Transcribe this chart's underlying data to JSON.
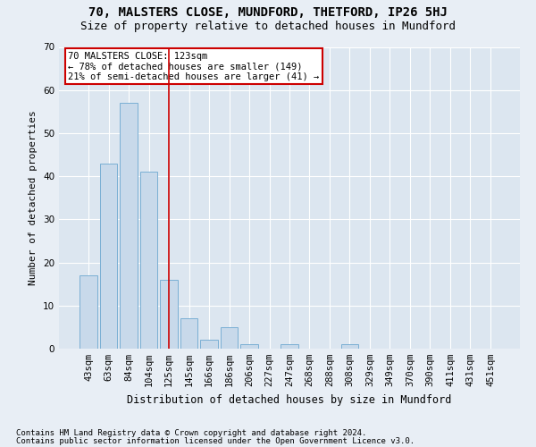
{
  "title1": "70, MALSTERS CLOSE, MUNDFORD, THETFORD, IP26 5HJ",
  "title2": "Size of property relative to detached houses in Mundford",
  "xlabel": "Distribution of detached houses by size in Mundford",
  "ylabel": "Number of detached properties",
  "categories": [
    "43sqm",
    "63sqm",
    "84sqm",
    "104sqm",
    "125sqm",
    "145sqm",
    "166sqm",
    "186sqm",
    "206sqm",
    "227sqm",
    "247sqm",
    "268sqm",
    "288sqm",
    "308sqm",
    "329sqm",
    "349sqm",
    "370sqm",
    "390sqm",
    "411sqm",
    "431sqm",
    "451sqm"
  ],
  "values": [
    17,
    43,
    57,
    41,
    16,
    7,
    2,
    5,
    1,
    0,
    1,
    0,
    0,
    1,
    0,
    0,
    0,
    0,
    0,
    0,
    0
  ],
  "bar_color": "#c8d9ea",
  "bar_edge_color": "#7aafd4",
  "vline_color": "#cc0000",
  "ylim": [
    0,
    70
  ],
  "yticks": [
    0,
    10,
    20,
    30,
    40,
    50,
    60,
    70
  ],
  "annotation_line1": "70 MALSTERS CLOSE: 123sqm",
  "annotation_line2": "← 78% of detached houses are smaller (149)",
  "annotation_line3": "21% of semi-detached houses are larger (41) →",
  "annotation_box_color": "#cc0000",
  "footnote1": "Contains HM Land Registry data © Crown copyright and database right 2024.",
  "footnote2": "Contains public sector information licensed under the Open Government Licence v3.0.",
  "fig_bg_color": "#e8eef5",
  "plot_bg_color": "#dce6f0",
  "title1_fontsize": 10,
  "title2_fontsize": 9,
  "xlabel_fontsize": 8.5,
  "ylabel_fontsize": 8,
  "tick_fontsize": 7.5,
  "annot_fontsize": 7.5,
  "footnote_fontsize": 6.5
}
